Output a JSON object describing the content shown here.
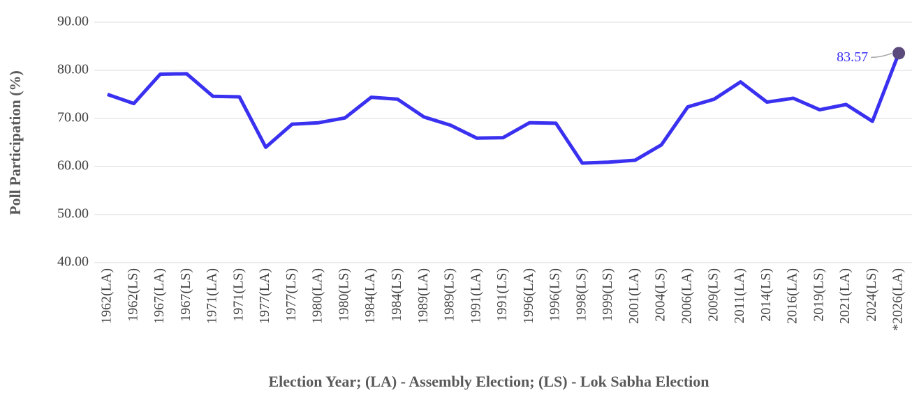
{
  "chart_data": {
    "type": "line",
    "x_label": "Election Year; (LA) - Assembly Election; (LS) - Lok Sabha Election",
    "y_label": "Poll Participation (%)",
    "categories": [
      "1962(LA)",
      "1962(LS)",
      "1967(LA)",
      "1967(LS)",
      "1971(LA)",
      "1971(LS)",
      "1977(LA)",
      "1977(LS)",
      "1980(LA)",
      "1980(LS)",
      "1984(LA)",
      "1984(LS)",
      "1989(LA)",
      "1989(LS)",
      "1991(LA)",
      "1991(LS)",
      "1996(LA)",
      "1996(LS)",
      "1998(LS)",
      "1999(LS)",
      "2001(LA)",
      "2004(LS)",
      "2006(LA)",
      "2009(LS)",
      "2011(LA)",
      "2014(LS)",
      "2016(LA)",
      "2019(LS)",
      "2021(LA)",
      "2024(LS)",
      "*2026(LA)"
    ],
    "values": [
      75.0,
      73.1,
      79.2,
      79.3,
      74.6,
      74.5,
      64.0,
      68.8,
      69.1,
      70.1,
      74.4,
      74.0,
      70.3,
      68.6,
      65.9,
      66.0,
      69.1,
      69.0,
      60.7,
      60.9,
      61.3,
      64.5,
      72.4,
      74.0,
      77.6,
      73.4,
      74.2,
      71.8,
      72.9,
      69.4,
      83.57
    ],
    "color": "#3a30f0",
    "highlight_color": "#5b4a7c",
    "ylim": [
      40,
      90
    ],
    "yticks": [
      {
        "value": 40,
        "label": "40.00"
      },
      {
        "value": 50,
        "label": "50.00"
      },
      {
        "value": 60,
        "label": "60.00"
      },
      {
        "value": 70,
        "label": "70.00"
      },
      {
        "value": 80,
        "label": "80.00"
      },
      {
        "value": 90,
        "label": "90.00"
      }
    ],
    "grid": true
  }
}
